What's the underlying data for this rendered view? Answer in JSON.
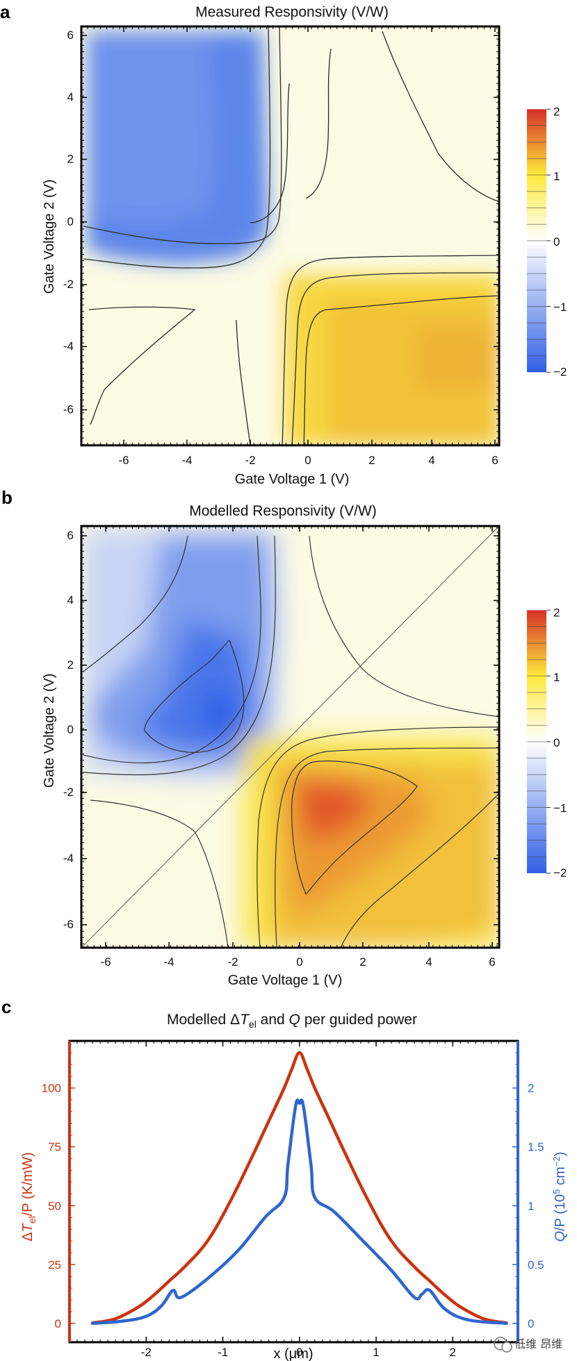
{
  "chart_data": [
    {
      "panel": "a",
      "type": "heatmap",
      "title": "Measured Responsivity (V/W)",
      "xlabel": "Gate Voltage 1 (V)",
      "ylabel": "Gate Voltage 2 (V)",
      "xlim": [
        -7,
        6.2
      ],
      "ylim": [
        -7.2,
        6.3
      ],
      "xticks": [
        "-6",
        "-4",
        "-2",
        "0",
        "2",
        "4",
        "6"
      ],
      "yticks": [
        "-6",
        "-4",
        "-2",
        "0",
        "2",
        "4",
        "6"
      ],
      "colorbar": {
        "range": [
          -2,
          2
        ],
        "ticks": [
          "2",
          "1",
          "0",
          "−1",
          "−2"
        ],
        "colors": [
          "#2f5fe6",
          "#ffffff",
          "#ffe93a",
          "#d62f26"
        ]
      },
      "regions": [
        {
          "name": "negative-responsivity",
          "x": [
            -7,
            -1.3
          ],
          "y": [
            -1.1,
            6.2
          ],
          "value": -1.2
        },
        {
          "name": "positive-responsivity",
          "x": [
            0.2,
            6.2
          ],
          "y": [
            -7.2,
            -2.2
          ],
          "value": 1.1
        }
      ]
    },
    {
      "panel": "b",
      "type": "heatmap",
      "title": "Modelled Responsivity (V/W)",
      "xlabel": "Gate Voltage 1 (V)",
      "ylabel": "Gate Voltage 2 (V)",
      "xlim": [
        -6.8,
        6.2
      ],
      "ylim": [
        -6.7,
        6.4
      ],
      "xticks": [
        "-6",
        "-4",
        "-2",
        "0",
        "2",
        "4",
        "6"
      ],
      "yticks": [
        "-6",
        "-4",
        "-2",
        "0",
        "2",
        "4",
        "6"
      ],
      "colorbar": {
        "range": [
          -2,
          2
        ],
        "ticks": [
          "2",
          "1",
          "0",
          "−1",
          "−2"
        ],
        "colors": [
          "#2f5fe6",
          "#ffffff",
          "#ffe93a",
          "#d62f26"
        ]
      },
      "extrema": [
        {
          "name": "minimum",
          "x": -2.4,
          "y": 0.4,
          "value": -1.9
        },
        {
          "name": "maximum",
          "x": 0.3,
          "y": -2.5,
          "value": 1.9
        }
      ]
    },
    {
      "panel": "c",
      "type": "line",
      "title": "Modelled ΔTₑₗ and Q̇ per guided power",
      "title_parts": {
        "before": "Modelled Δ",
        "T": "T",
        "sub": "el",
        "mid": " and ",
        "Q": "Q",
        "after": " per guided power"
      },
      "xlabel": "x (μm)",
      "ylabel_left": "ΔTₑₗ/P (K/mW)",
      "ylabel_left_parts": {
        "pre": "Δ",
        "T": "T",
        "sub": "el",
        "post": "/P (K/mW)"
      },
      "ylabel_right": "Q̇/P (10⁵ cm⁻²)",
      "ylabel_right_parts": {
        "Q": "Q",
        "post": "/P (10",
        "sup5": "5",
        "mid": " cm",
        "sup2": "−2",
        "close": ")"
      },
      "xlim": [
        -3.0,
        2.85
      ],
      "ylim_left": [
        -8,
        120
      ],
      "ylim_right": [
        -0.16,
        2.4
      ],
      "xticks": [
        "-2",
        "-1",
        "0",
        "1",
        "2"
      ],
      "yticks_left": [
        "0",
        "25",
        "50",
        "75",
        "100"
      ],
      "yticks_right": [
        "0",
        "0.5",
        "1",
        "1.5",
        "2"
      ],
      "series": [
        {
          "name": "ΔT_el/P",
          "axis": "left",
          "color": "#cc3310",
          "x": [
            -2.7,
            -2.4,
            -2.1,
            -1.9,
            -1.7,
            -1.5,
            -1.2,
            -0.9,
            -0.6,
            -0.4,
            -0.2,
            -0.1,
            0.0,
            0.1,
            0.2,
            0.4,
            0.6,
            0.9,
            1.2,
            1.5,
            1.7,
            1.9,
            2.1,
            2.4,
            2.7
          ],
          "values": [
            0.2,
            2,
            7,
            12,
            18,
            24,
            35,
            52,
            72,
            86,
            100,
            108,
            115,
            108,
            100,
            86,
            72,
            52,
            35,
            24,
            18,
            12,
            7,
            2,
            0.2
          ]
        },
        {
          "name": "Q̇/P",
          "axis": "right",
          "color": "#2f66cf",
          "x": [
            -2.7,
            -2.3,
            -2.0,
            -1.8,
            -1.65,
            -1.55,
            -1.2,
            -0.8,
            -0.45,
            -0.2,
            -0.15,
            -0.05,
            0.0,
            0.05,
            0.15,
            0.2,
            0.45,
            0.8,
            1.2,
            1.5,
            1.6,
            1.7,
            1.9,
            2.2,
            2.7
          ],
          "values": [
            0.0,
            0.02,
            0.06,
            0.15,
            0.28,
            0.22,
            0.38,
            0.62,
            0.9,
            1.07,
            1.35,
            1.85,
            1.87,
            1.85,
            1.35,
            1.07,
            0.95,
            0.72,
            0.45,
            0.22,
            0.25,
            0.28,
            0.12,
            0.03,
            0.0
          ]
        }
      ]
    }
  ],
  "panels": {
    "a": "a",
    "b": "b",
    "c": "c"
  },
  "watermark": "低维 昂维"
}
